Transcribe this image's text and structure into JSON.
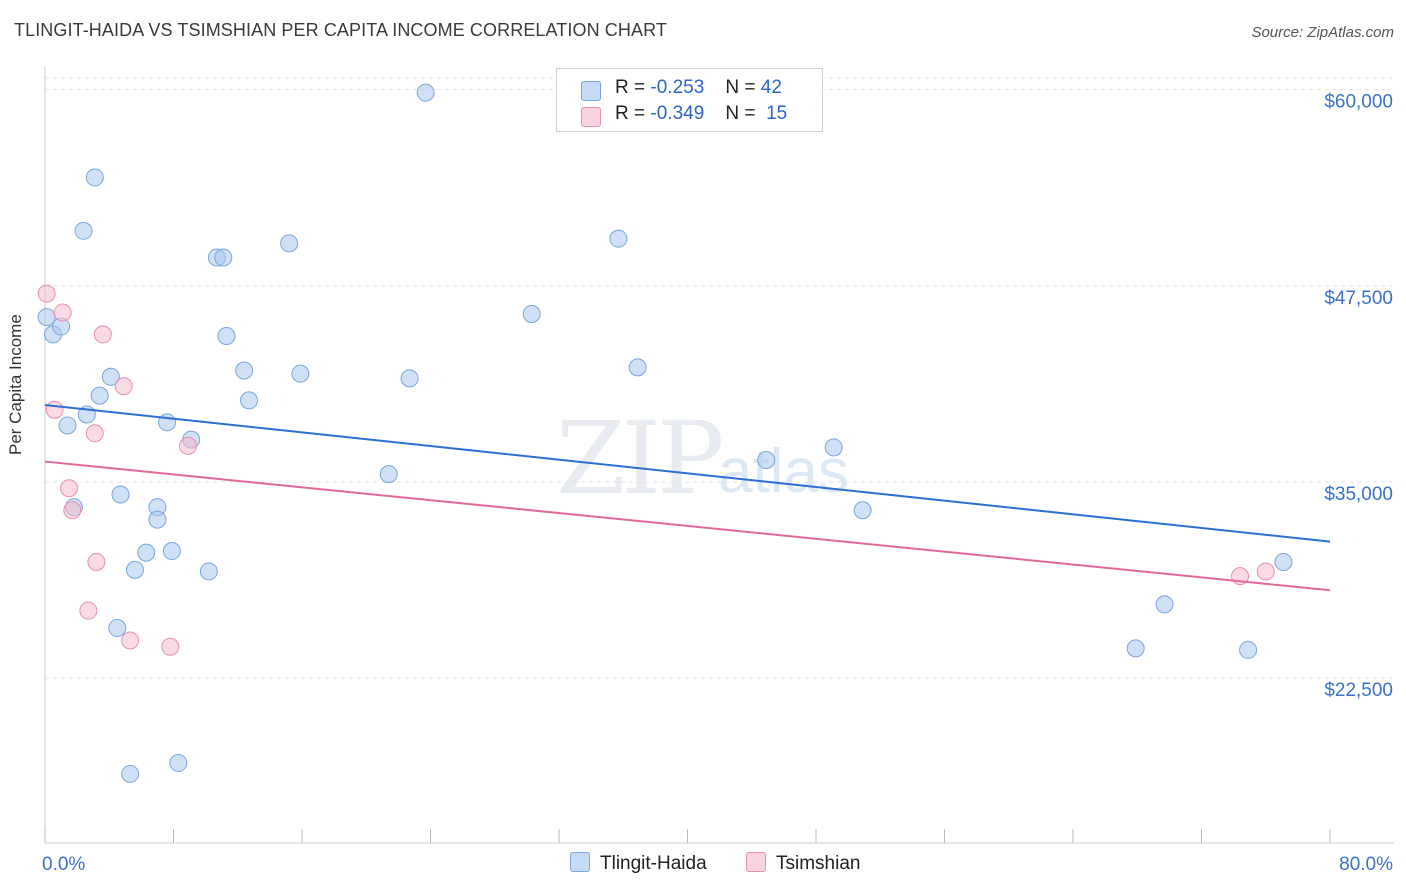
{
  "title": "TLINGIT-HAIDA VS TSIMSHIAN PER CAPITA INCOME CORRELATION CHART",
  "source": "Source: ZipAtlas.com",
  "watermark": {
    "main": "ZIP",
    "sub": "atlas"
  },
  "legend_top": [
    {
      "r_label": "R =",
      "r_value": "-0.253",
      "n_label": "N =",
      "n_value": "42",
      "color": "#a9c8f0"
    },
    {
      "r_label": "R =",
      "r_value": "-0.349",
      "n_label": "N =",
      "n_value": "15",
      "color": "#f6bcd0"
    }
  ],
  "legend_bottom": [
    {
      "label": "Tlingit-Haida",
      "color": "#a9c8f0"
    },
    {
      "label": "Tsimshian",
      "color": "#f6bcd0"
    }
  ],
  "chart_data": {
    "type": "scatter",
    "title": "TLINGIT-HAIDA VS TSIMSHIAN PER CAPITA INCOME CORRELATION CHART",
    "xlabel": "",
    "ylabel": "Per Capita Income",
    "xlim": [
      0,
      80
    ],
    "ylim": [
      12000,
      61500
    ],
    "x_tick_labels": [
      "0.0%",
      "80.0%"
    ],
    "y_ticks": [
      22500,
      35000,
      47500,
      60000
    ],
    "y_tick_labels": [
      "$22,500",
      "$35,000",
      "$47,500",
      "$60,000"
    ],
    "series": [
      {
        "name": "Tlingit-Haida",
        "color": "#a9c8f0",
        "stroke": "#7aa6dc",
        "trend": {
          "x": [
            0,
            80
          ],
          "y": [
            39900,
            31200
          ],
          "color": "#2a6fd1"
        },
        "points": [
          [
            0.1,
            45500
          ],
          [
            0.5,
            44400
          ],
          [
            1.0,
            44900
          ],
          [
            1.4,
            38600
          ],
          [
            1.8,
            33400
          ],
          [
            2.4,
            51000
          ],
          [
            2.6,
            39300
          ],
          [
            3.1,
            54400
          ],
          [
            3.4,
            40500
          ],
          [
            4.1,
            41700
          ],
          [
            4.5,
            25700
          ],
          [
            4.7,
            34200
          ],
          [
            5.3,
            16400
          ],
          [
            5.6,
            29400
          ],
          [
            6.3,
            30500
          ],
          [
            7.0,
            33400
          ],
          [
            7.0,
            32600
          ],
          [
            7.6,
            38800
          ],
          [
            7.9,
            30600
          ],
          [
            8.3,
            17100
          ],
          [
            9.1,
            37700
          ],
          [
            10.2,
            29300
          ],
          [
            10.7,
            49300
          ],
          [
            11.1,
            49300
          ],
          [
            11.3,
            44300
          ],
          [
            12.4,
            42100
          ],
          [
            12.7,
            40200
          ],
          [
            15.2,
            50200
          ],
          [
            15.9,
            41900
          ],
          [
            21.4,
            35500
          ],
          [
            22.7,
            41600
          ],
          [
            23.7,
            59800
          ],
          [
            30.3,
            45700
          ],
          [
            35.7,
            50500
          ],
          [
            36.9,
            42300
          ],
          [
            44.9,
            36400
          ],
          [
            49.1,
            37200
          ],
          [
            50.9,
            33200
          ],
          [
            67.9,
            24400
          ],
          [
            69.7,
            27200
          ],
          [
            74.9,
            24300
          ],
          [
            77.1,
            29900
          ]
        ]
      },
      {
        "name": "Tsimshian",
        "color": "#f6bcd0",
        "stroke": "#e890ae",
        "trend": {
          "x": [
            0,
            80
          ],
          "y": [
            36300,
            28100
          ],
          "color": "#e0689a"
        },
        "points": [
          [
            0.1,
            47000
          ],
          [
            0.6,
            39600
          ],
          [
            1.1,
            45800
          ],
          [
            1.5,
            34600
          ],
          [
            1.7,
            33200
          ],
          [
            2.7,
            26800
          ],
          [
            3.1,
            38100
          ],
          [
            3.2,
            29900
          ],
          [
            3.6,
            44400
          ],
          [
            4.9,
            41100
          ],
          [
            5.3,
            24900
          ],
          [
            7.8,
            24500
          ],
          [
            8.9,
            37300
          ],
          [
            74.4,
            29000
          ],
          [
            76.0,
            29300
          ]
        ]
      }
    ]
  }
}
